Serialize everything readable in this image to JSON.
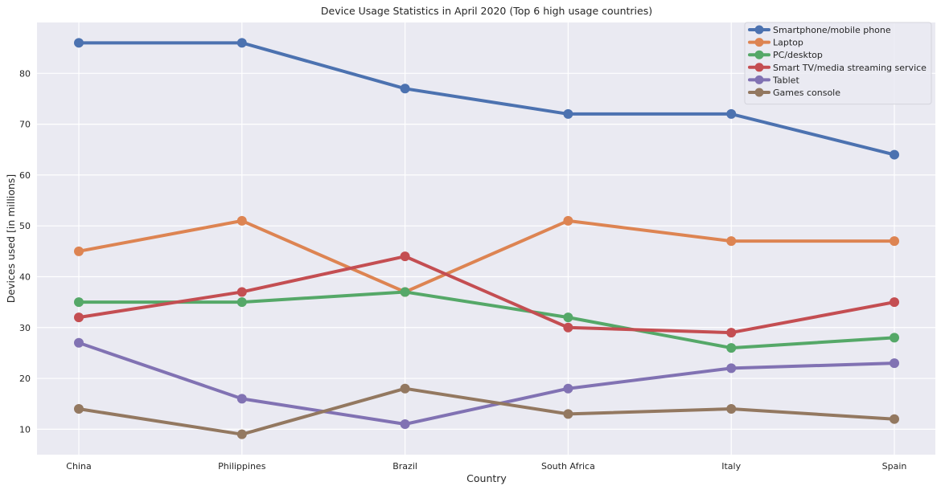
{
  "chart_data": {
    "type": "line",
    "title": "Device Usage Statistics in April 2020 (Top 6 high usage countries)",
    "xlabel": "Country",
    "ylabel": "Devices used [in millions]",
    "categories": [
      "China",
      "Philippines",
      "Brazil",
      "South Africa",
      "Italy",
      "Spain"
    ],
    "ylim": [
      5,
      90
    ],
    "yticks": [
      10,
      20,
      30,
      40,
      50,
      60,
      70,
      80
    ],
    "grid": true,
    "legend_position": "top-right",
    "series": [
      {
        "name": "Smartphone/mobile phone",
        "color": "#4c72b0",
        "values": [
          86,
          86,
          77,
          72,
          72,
          64
        ]
      },
      {
        "name": "Laptop",
        "color": "#dd8452",
        "values": [
          45,
          51,
          37,
          51,
          47,
          47
        ]
      },
      {
        "name": "PC/desktop",
        "color": "#55a868",
        "values": [
          35,
          35,
          37,
          32,
          26,
          28
        ]
      },
      {
        "name": "Smart TV/media streaming service",
        "color": "#c44e52",
        "values": [
          32,
          37,
          44,
          30,
          29,
          35
        ]
      },
      {
        "name": "Tablet",
        "color": "#8172b3",
        "values": [
          27,
          16,
          11,
          18,
          22,
          23
        ]
      },
      {
        "name": "Games console",
        "color": "#937860",
        "values": [
          14,
          9,
          18,
          13,
          14,
          12
        ]
      }
    ]
  }
}
